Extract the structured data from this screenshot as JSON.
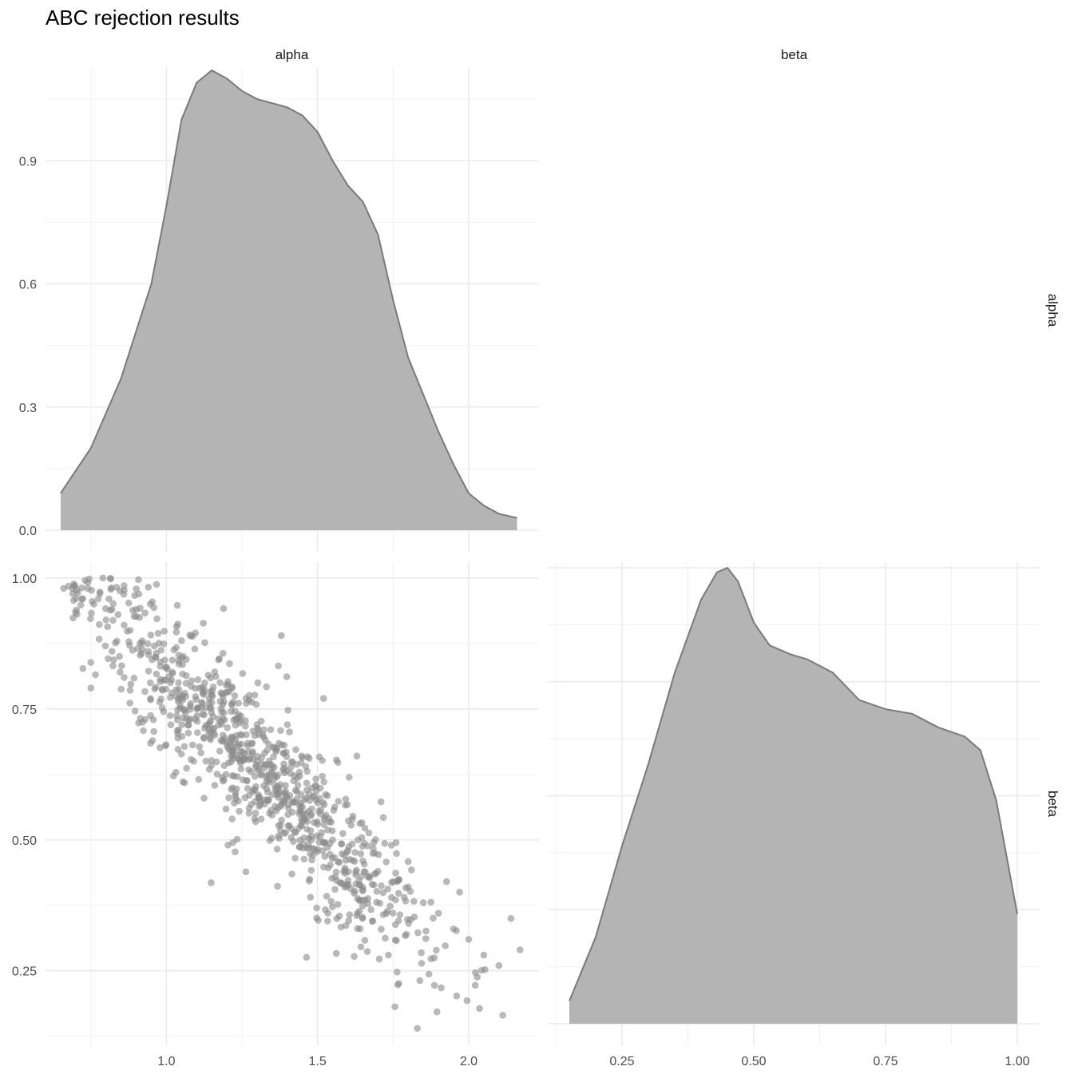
{
  "title": "ABC rejection results",
  "chart_data": {
    "type": "scatter-matrix",
    "variables": [
      "alpha",
      "beta"
    ],
    "column_strips": [
      "alpha",
      "beta"
    ],
    "row_strips": [
      "alpha",
      "beta"
    ],
    "x_ticks": {
      "alpha": {
        "values": [
          1.0,
          1.5,
          2.0
        ],
        "labels": [
          "1.0",
          "1.5",
          "2.0"
        ]
      },
      "beta": {
        "values": [
          0.25,
          0.5,
          0.75,
          1.0
        ],
        "labels": [
          "0.25",
          "0.50",
          "0.75",
          "1.00"
        ]
      }
    },
    "y_ticks": {
      "density_alpha": {
        "values": [
          0.0,
          0.3,
          0.6,
          0.9
        ],
        "labels": [
          "0.0",
          "0.3",
          "0.6",
          "0.9"
        ]
      },
      "beta": {
        "values": [
          0.25,
          0.5,
          0.75,
          1.0
        ],
        "labels": [
          "0.25",
          "0.50",
          "0.75",
          "1.00"
        ]
      }
    },
    "ranges": {
      "alpha": [
        0.6,
        2.23
      ],
      "beta": [
        0.12,
        1.05
      ],
      "density_alpha": [
        0.0,
        1.2
      ],
      "density_beta": [
        0.0,
        1.1
      ]
    },
    "grid": true,
    "colors": {
      "fill": "#b4b4b4",
      "line": "#7a7a7a",
      "point": "#8a8a8a"
    },
    "density_alpha": {
      "x": [
        0.65,
        0.75,
        0.85,
        0.95,
        1.0,
        1.05,
        1.1,
        1.15,
        1.2,
        1.25,
        1.3,
        1.35,
        1.4,
        1.45,
        1.5,
        1.55,
        1.6,
        1.65,
        1.7,
        1.75,
        1.8,
        1.85,
        1.9,
        1.95,
        2.0,
        2.05,
        2.1,
        2.16
      ],
      "y": [
        0.09,
        0.2,
        0.37,
        0.6,
        0.79,
        1.0,
        1.09,
        1.12,
        1.1,
        1.07,
        1.05,
        1.04,
        1.03,
        1.01,
        0.97,
        0.9,
        0.84,
        0.8,
        0.72,
        0.56,
        0.42,
        0.33,
        0.24,
        0.16,
        0.09,
        0.06,
        0.04,
        0.03
      ]
    },
    "density_beta": {
      "x": [
        0.15,
        0.2,
        0.25,
        0.3,
        0.35,
        0.4,
        0.43,
        0.45,
        0.47,
        0.5,
        0.53,
        0.57,
        0.6,
        0.65,
        0.7,
        0.75,
        0.8,
        0.85,
        0.9,
        0.93,
        0.96,
        1.0
      ],
      "y": [
        0.05,
        0.19,
        0.39,
        0.57,
        0.77,
        0.93,
        0.99,
        1.0,
        0.97,
        0.88,
        0.83,
        0.81,
        0.8,
        0.77,
        0.71,
        0.69,
        0.68,
        0.65,
        0.63,
        0.6,
        0.49,
        0.24
      ]
    },
    "scatter": {
      "x": "alpha",
      "y": "beta",
      "n_points": 900,
      "relationship": "beta decreases as alpha increases",
      "points": {
        "alpha": [
          0.66,
          0.69,
          0.72,
          0.74,
          0.76,
          0.78,
          0.79,
          0.8,
          0.81,
          0.82,
          0.84,
          0.86,
          0.88,
          0.9,
          0.92,
          0.94,
          0.96,
          0.98,
          1.0,
          1.02,
          1.04,
          1.06,
          1.08,
          1.1,
          1.12,
          1.14,
          1.16,
          1.18,
          1.2,
          0.75,
          0.82,
          0.86,
          0.93,
          1.04,
          1.12,
          1.3,
          1.22,
          1.28,
          1.34,
          1.4,
          1.45,
          1.5,
          1.55,
          1.6,
          1.65,
          1.7,
          1.75,
          1.8,
          1.85,
          1.9,
          1.95,
          2.0,
          2.05,
          2.1,
          2.14,
          2.17,
          1.83,
          1.97,
          1.52,
          1.38,
          1.63
        ],
        "beta": [
          0.98,
          0.97,
          0.96,
          0.98,
          0.95,
          0.97,
          1.0,
          0.92,
          0.96,
          0.94,
          0.93,
          0.91,
          0.9,
          0.94,
          0.88,
          0.86,
          0.87,
          0.84,
          0.83,
          0.82,
          0.8,
          0.78,
          0.76,
          0.75,
          0.74,
          0.72,
          0.7,
          0.69,
          0.68,
          0.79,
          0.86,
          0.81,
          0.73,
          0.71,
          0.78,
          0.72,
          0.66,
          0.63,
          0.61,
          0.58,
          0.55,
          0.53,
          0.5,
          0.48,
          0.46,
          0.44,
          0.42,
          0.41,
          0.38,
          0.36,
          0.33,
          0.31,
          0.28,
          0.26,
          0.35,
          0.29,
          0.14,
          0.4,
          0.77,
          0.89,
          0.66
        ]
      }
    }
  }
}
